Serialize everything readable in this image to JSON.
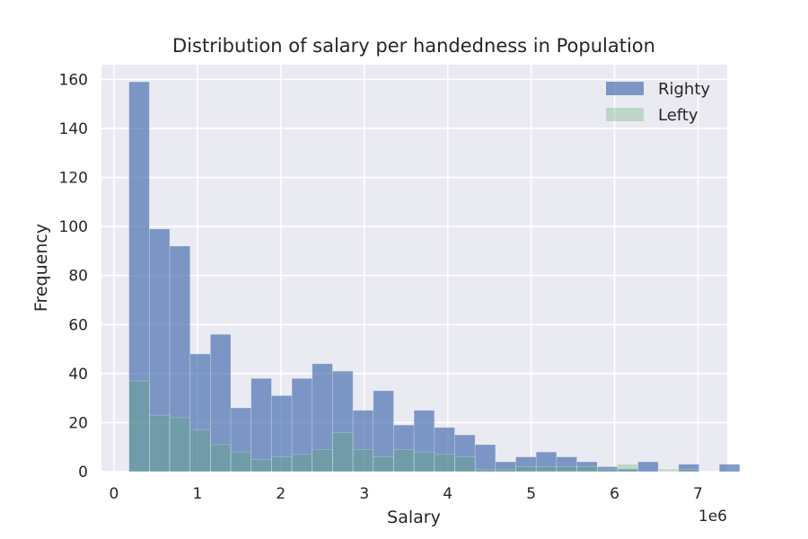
{
  "chart_data": {
    "type": "bar",
    "title": "Distribution of salary per handedness in Population",
    "xlabel": "Salary",
    "ylabel": "Frequency",
    "x_offset_label": "1e6",
    "xlim": [
      -0.15,
      7.35
    ],
    "ylim": [
      0,
      166
    ],
    "x_ticks": [
      0,
      1,
      2,
      3,
      4,
      5,
      6,
      7
    ],
    "y_ticks": [
      0,
      20,
      40,
      60,
      80,
      100,
      120,
      140,
      160
    ],
    "grid": true,
    "legend_position": "top-right",
    "bin_start": 0.18,
    "bin_width": 0.244,
    "series": [
      {
        "name": "Righty",
        "color": "#4C72B0",
        "opacity": 0.7,
        "values": [
          159,
          99,
          92,
          48,
          56,
          26,
          38,
          31,
          38,
          44,
          41,
          25,
          33,
          19,
          25,
          18,
          15,
          11,
          4,
          6,
          8,
          6,
          4,
          2,
          1,
          4,
          0,
          3,
          0,
          3
        ]
      },
      {
        "name": "Lefty",
        "color": "#55A868",
        "opacity": 0.3,
        "values": [
          37,
          23,
          22,
          17,
          11,
          8,
          5,
          6,
          7,
          9,
          16,
          9,
          6,
          9,
          8,
          7,
          6,
          1,
          1,
          2,
          2,
          2,
          2,
          1,
          3,
          0,
          1,
          1,
          0,
          0
        ]
      }
    ]
  }
}
